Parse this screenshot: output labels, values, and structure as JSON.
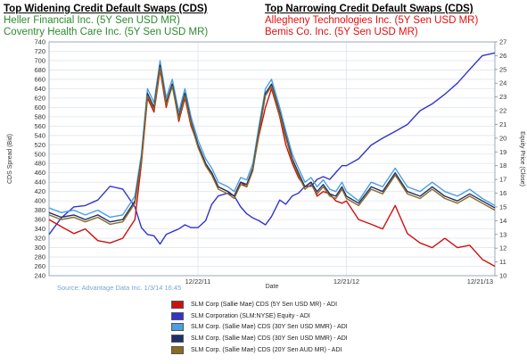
{
  "header": {
    "left_title": "Top Widening Credit Default Swaps (CDS)",
    "left_items": [
      "Heller Financial Inc. (5Y Sen USD MR)",
      "Coventry Health Care Inc. (5Y Sen USD MR)"
    ],
    "right_title": "Top Narrowing Credit Default Swaps (CDS)",
    "right_items": [
      "Allegheny Technologies Inc. (5Y Sen USD MR)",
      "Bemis Co. Inc. (5Y Sen USD MR)"
    ],
    "colors": {
      "widening": "#2e8b2e",
      "narrowing": "#e01010"
    }
  },
  "source": "Source: Advantage Data Inc. 1/3/14 16:45",
  "chart_data": {
    "type": "line",
    "xlabel": "Date",
    "ylabel": "CDS Spread (Bid)",
    "y2label": "Equity Price (Close)",
    "x_range": [
      "2010-12-21",
      "2013-12-21"
    ],
    "x_ticks": [
      "12/22/11",
      "12/21/12",
      "12/21/13"
    ],
    "ylim": [
      240,
      740
    ],
    "y_ticks": [
      240,
      260,
      280,
      300,
      320,
      340,
      360,
      380,
      400,
      420,
      440,
      460,
      480,
      500,
      520,
      540,
      560,
      580,
      600,
      620,
      640,
      660,
      680,
      700,
      720,
      740
    ],
    "y2lim": [
      10,
      27
    ],
    "y2_ticks": [
      10,
      11,
      12,
      13,
      14,
      15,
      16,
      17,
      18,
      19,
      20,
      21,
      22,
      23,
      24,
      25,
      26,
      27
    ],
    "grid": true,
    "series": [
      {
        "name": "SLM Corp (Sallie Mae) CDS (5Y Sen USD MR) - ADI",
        "color": "#cc1111",
        "axis": "left",
        "x": [
          "2010-12-21",
          "2011-01-20",
          "2011-02-20",
          "2011-03-20",
          "2011-04-20",
          "2011-05-20",
          "2011-06-20",
          "2011-07-20",
          "2011-08-05",
          "2011-08-20",
          "2011-09-05",
          "2011-09-20",
          "2011-10-05",
          "2011-10-20",
          "2011-11-05",
          "2011-11-20",
          "2011-12-05",
          "2011-12-22",
          "2012-01-10",
          "2012-01-25",
          "2012-02-10",
          "2012-03-05",
          "2012-03-20",
          "2012-04-05",
          "2012-04-20",
          "2012-05-05",
          "2012-05-20",
          "2012-06-05",
          "2012-06-20",
          "2012-07-10",
          "2012-07-25",
          "2012-08-10",
          "2012-08-25",
          "2012-09-10",
          "2012-09-25",
          "2012-10-10",
          "2012-10-25",
          "2012-11-10",
          "2012-11-25",
          "2012-12-10",
          "2012-12-21",
          "2013-01-20",
          "2013-02-20",
          "2013-03-20",
          "2013-04-20",
          "2013-05-20",
          "2013-06-20",
          "2013-07-20",
          "2013-08-20",
          "2013-09-20",
          "2013-10-20",
          "2013-11-20",
          "2013-12-21"
        ],
        "values": [
          360,
          345,
          330,
          340,
          315,
          310,
          320,
          360,
          480,
          620,
          590,
          680,
          600,
          650,
          570,
          620,
          560,
          520,
          480,
          460,
          430,
          420,
          410,
          440,
          430,
          470,
          540,
          600,
          640,
          580,
          520,
          480,
          450,
          430,
          440,
          410,
          420,
          415,
          400,
          395,
          400,
          360,
          350,
          340,
          390,
          330,
          310,
          300,
          320,
          300,
          305,
          275,
          260
        ]
      },
      {
        "name": "SLM Corporation (SLM:NYSE) Equity - ADI",
        "color": "#3333cc",
        "axis": "right",
        "x": [
          "2010-12-21",
          "2011-01-20",
          "2011-02-20",
          "2011-03-20",
          "2011-04-20",
          "2011-05-20",
          "2011-06-20",
          "2011-07-20",
          "2011-08-05",
          "2011-08-20",
          "2011-09-05",
          "2011-09-20",
          "2011-10-05",
          "2011-10-20",
          "2011-11-05",
          "2011-11-20",
          "2011-12-05",
          "2011-12-22",
          "2012-01-10",
          "2012-01-25",
          "2012-02-10",
          "2012-03-05",
          "2012-03-20",
          "2012-04-05",
          "2012-04-20",
          "2012-05-05",
          "2012-05-20",
          "2012-06-05",
          "2012-06-20",
          "2012-07-10",
          "2012-07-25",
          "2012-08-10",
          "2012-08-25",
          "2012-09-10",
          "2012-09-25",
          "2012-10-10",
          "2012-10-25",
          "2012-11-10",
          "2012-11-25",
          "2012-12-10",
          "2012-12-21",
          "2013-01-20",
          "2013-02-20",
          "2013-03-20",
          "2013-04-20",
          "2013-05-20",
          "2013-06-20",
          "2013-07-20",
          "2013-08-20",
          "2013-09-20",
          "2013-10-20",
          "2013-11-20",
          "2013-12-21"
        ],
        "values": [
          13.0,
          14.2,
          15.0,
          15.1,
          15.5,
          16.5,
          16.3,
          15.0,
          13.5,
          13.0,
          12.9,
          12.3,
          13.0,
          13.2,
          13.4,
          13.7,
          13.5,
          13.5,
          14.0,
          15.2,
          15.8,
          16.0,
          15.8,
          15.0,
          14.5,
          14.2,
          14.0,
          13.7,
          14.3,
          15.5,
          15.2,
          15.8,
          16.0,
          16.5,
          16.5,
          17.0,
          17.2,
          17.0,
          17.5,
          18.0,
          18.0,
          18.5,
          19.5,
          20.0,
          20.5,
          21.0,
          22.0,
          22.5,
          23.2,
          24.0,
          25.0,
          26.0,
          26.2
        ]
      },
      {
        "name": "SLM Corp. (Sallie Mae) CDS (30Y Sen USD MMR) - ADI",
        "color": "#4a9fe0",
        "axis": "left",
        "x": [
          "2010-12-21",
          "2011-01-20",
          "2011-02-20",
          "2011-03-20",
          "2011-04-20",
          "2011-05-20",
          "2011-06-20",
          "2011-07-20",
          "2011-08-05",
          "2011-08-20",
          "2011-09-05",
          "2011-09-20",
          "2011-10-05",
          "2011-10-20",
          "2011-11-05",
          "2011-11-20",
          "2011-12-05",
          "2011-12-22",
          "2012-01-10",
          "2012-01-25",
          "2012-02-10",
          "2012-03-05",
          "2012-03-20",
          "2012-04-05",
          "2012-04-20",
          "2012-05-05",
          "2012-05-20",
          "2012-06-05",
          "2012-06-20",
          "2012-07-10",
          "2012-07-25",
          "2012-08-10",
          "2012-08-25",
          "2012-09-10",
          "2012-09-25",
          "2012-10-10",
          "2012-10-25",
          "2012-11-10",
          "2012-11-25",
          "2012-12-10",
          "2012-12-21",
          "2013-01-20",
          "2013-02-20",
          "2013-03-20",
          "2013-04-20",
          "2013-05-20",
          "2013-06-20",
          "2013-07-20",
          "2013-08-20",
          "2013-09-20",
          "2013-10-20",
          "2013-11-20",
          "2013-12-21"
        ],
        "values": [
          385,
          375,
          380,
          370,
          380,
          365,
          370,
          410,
          500,
          640,
          610,
          700,
          620,
          660,
          590,
          640,
          580,
          530,
          490,
          470,
          440,
          430,
          420,
          450,
          445,
          480,
          560,
          640,
          660,
          600,
          550,
          500,
          470,
          440,
          450,
          430,
          445,
          425,
          420,
          440,
          420,
          400,
          440,
          430,
          470,
          430,
          420,
          440,
          420,
          410,
          425,
          405,
          390
        ]
      },
      {
        "name": "SLM Corp. (Sallie Mae) CDS (30Y Sen USD MMR) - ADI",
        "color": "#1f2f6e",
        "axis": "left",
        "x": [
          "2010-12-21",
          "2011-01-20",
          "2011-02-20",
          "2011-03-20",
          "2011-04-20",
          "2011-05-20",
          "2011-06-20",
          "2011-07-20",
          "2011-08-05",
          "2011-08-20",
          "2011-09-05",
          "2011-09-20",
          "2011-10-05",
          "2011-10-20",
          "2011-11-05",
          "2011-11-20",
          "2011-12-05",
          "2011-12-22",
          "2012-01-10",
          "2012-01-25",
          "2012-02-10",
          "2012-03-05",
          "2012-03-20",
          "2012-04-05",
          "2012-04-20",
          "2012-05-05",
          "2012-05-20",
          "2012-06-05",
          "2012-06-20",
          "2012-07-10",
          "2012-07-25",
          "2012-08-10",
          "2012-08-25",
          "2012-09-10",
          "2012-09-25",
          "2012-10-10",
          "2012-10-25",
          "2012-11-10",
          "2012-11-25",
          "2012-12-10",
          "2012-12-21",
          "2013-01-20",
          "2013-02-20",
          "2013-03-20",
          "2013-04-20",
          "2013-05-20",
          "2013-06-20",
          "2013-07-20",
          "2013-08-20",
          "2013-09-20",
          "2013-10-20",
          "2013-11-20",
          "2013-12-21"
        ],
        "values": [
          375,
          365,
          370,
          360,
          370,
          355,
          360,
          400,
          490,
          630,
          600,
          690,
          610,
          650,
          580,
          630,
          570,
          520,
          480,
          460,
          430,
          420,
          410,
          440,
          435,
          470,
          550,
          630,
          650,
          590,
          540,
          490,
          460,
          430,
          440,
          420,
          435,
          415,
          410,
          430,
          410,
          395,
          430,
          420,
          460,
          420,
          410,
          430,
          410,
          400,
          415,
          400,
          385
        ]
      },
      {
        "name": "SLM Corp. (Sallie Mae) CDS (20Y Sen AUD MR) - ADI",
        "color": "#8b6b1f",
        "axis": "left",
        "x": [
          "2010-12-21",
          "2011-01-20",
          "2011-02-20",
          "2011-03-20",
          "2011-04-20",
          "2011-05-20",
          "2011-06-20",
          "2011-07-20",
          "2011-08-05",
          "2011-08-20",
          "2011-09-05",
          "2011-09-20",
          "2011-10-05",
          "2011-10-20",
          "2011-11-05",
          "2011-11-20",
          "2011-12-05",
          "2011-12-22",
          "2012-01-10",
          "2012-01-25",
          "2012-02-10",
          "2012-03-05",
          "2012-03-20",
          "2012-04-05",
          "2012-04-20",
          "2012-05-05",
          "2012-05-20",
          "2012-06-05",
          "2012-06-20",
          "2012-07-10",
          "2012-07-25",
          "2012-08-10",
          "2012-08-25",
          "2012-09-10",
          "2012-09-25",
          "2012-10-10",
          "2012-10-25",
          "2012-11-10",
          "2012-11-25",
          "2012-12-10",
          "2012-12-21",
          "2013-01-20",
          "2013-02-20",
          "2013-03-20",
          "2013-04-20",
          "2013-05-20",
          "2013-06-20",
          "2013-07-20",
          "2013-08-20",
          "2013-09-20",
          "2013-10-20",
          "2013-11-20",
          "2013-12-21"
        ],
        "values": [
          370,
          360,
          365,
          355,
          365,
          350,
          355,
          395,
          485,
          625,
          595,
          685,
          605,
          645,
          575,
          625,
          565,
          515,
          475,
          455,
          425,
          415,
          405,
          435,
          430,
          465,
          545,
          625,
          645,
          585,
          535,
          485,
          455,
          425,
          435,
          415,
          430,
          410,
          405,
          425,
          405,
          390,
          425,
          415,
          455,
          415,
          405,
          425,
          405,
          395,
          410,
          395,
          380
        ]
      }
    ]
  }
}
